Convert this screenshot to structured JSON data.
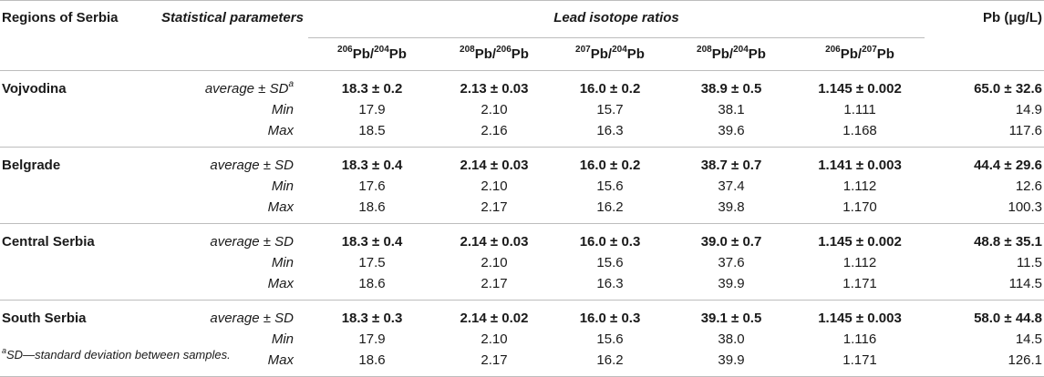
{
  "header": {
    "regions": "Regions of Serbia",
    "stat_params": "Statistical parameters",
    "lead_isotope_ratios": "Lead isotope ratios",
    "pb": "Pb (μg/L)",
    "ratios": [
      {
        "num_mass": "206",
        "num_el": "Pb",
        "sep": "/",
        "den_mass": "204",
        "den_el": "Pb"
      },
      {
        "num_mass": "208",
        "num_el": "Pb",
        "sep": "/",
        "den_mass": "206",
        "den_el": "Pb"
      },
      {
        "num_mass": "207",
        "num_el": "Pb",
        "sep": "/",
        "den_mass": "204",
        "den_el": "Pb"
      },
      {
        "num_mass": "208",
        "num_el": "Pb",
        "sep": "/",
        "den_mass": "204",
        "den_el": "Pb"
      },
      {
        "num_mass": "206",
        "num_el": "Pb",
        "sep": "/",
        "den_mass": "207",
        "den_el": "Pb"
      }
    ]
  },
  "groups": [
    {
      "region": "Vojvodina",
      "rows": [
        {
          "stat": "average ± SD",
          "stat_sup": "a",
          "values": [
            "18.3 ± 0.2",
            "2.13 ± 0.03",
            "16.0 ± 0.2",
            "38.9 ± 0.5",
            "1.145 ± 0.002"
          ],
          "pb": "65.0 ± 32.6"
        },
        {
          "stat": "Min",
          "stat_sup": "",
          "values": [
            "17.9",
            "2.10",
            "15.7",
            "38.1",
            "1.111"
          ],
          "pb": "14.9"
        },
        {
          "stat": "Max",
          "stat_sup": "",
          "values": [
            "18.5",
            "2.16",
            "16.3",
            "39.6",
            "1.168"
          ],
          "pb": "117.6"
        }
      ]
    },
    {
      "region": "Belgrade",
      "rows": [
        {
          "stat": "average ± SD",
          "stat_sup": "",
          "values": [
            "18.3 ± 0.4",
            "2.14 ± 0.03",
            "16.0 ± 0.2",
            "38.7 ± 0.7",
            "1.141 ± 0.003"
          ],
          "pb": "44.4 ± 29.6"
        },
        {
          "stat": "Min",
          "stat_sup": "",
          "values": [
            "17.6",
            "2.10",
            "15.6",
            "37.4",
            "1.112"
          ],
          "pb": "12.6"
        },
        {
          "stat": "Max",
          "stat_sup": "",
          "values": [
            "18.6",
            "2.17",
            "16.2",
            "39.8",
            "1.170"
          ],
          "pb": "100.3"
        }
      ]
    },
    {
      "region": "Central Serbia",
      "rows": [
        {
          "stat": "average ± SD",
          "stat_sup": "",
          "values": [
            "18.3 ± 0.4",
            "2.14 ± 0.03",
            "16.0 ± 0.3",
            "39.0 ± 0.7",
            "1.145 ± 0.002"
          ],
          "pb": "48.8 ± 35.1"
        },
        {
          "stat": "Min",
          "stat_sup": "",
          "values": [
            "17.5",
            "2.10",
            "15.6",
            "37.6",
            "1.112"
          ],
          "pb": "11.5"
        },
        {
          "stat": "Max",
          "stat_sup": "",
          "values": [
            "18.6",
            "2.17",
            "16.3",
            "39.9",
            "1.171"
          ],
          "pb": "114.5"
        }
      ]
    },
    {
      "region": "South Serbia",
      "rows": [
        {
          "stat": "average ± SD",
          "stat_sup": "",
          "values": [
            "18.3 ± 0.3",
            "2.14 ± 0.02",
            "16.0 ± 0.3",
            "39.1 ± 0.5",
            "1.145 ± 0.003"
          ],
          "pb": "58.0 ± 44.8"
        },
        {
          "stat": "Min",
          "stat_sup": "",
          "values": [
            "17.9",
            "2.10",
            "15.6",
            "38.0",
            "1.116"
          ],
          "pb": "14.5"
        },
        {
          "stat": "Max",
          "stat_sup": "",
          "values": [
            "18.6",
            "2.17",
            "16.2",
            "39.9",
            "1.171"
          ],
          "pb": "126.1"
        }
      ]
    }
  ],
  "footnote": {
    "marker": "a",
    "text": "SD—standard deviation between samples."
  }
}
